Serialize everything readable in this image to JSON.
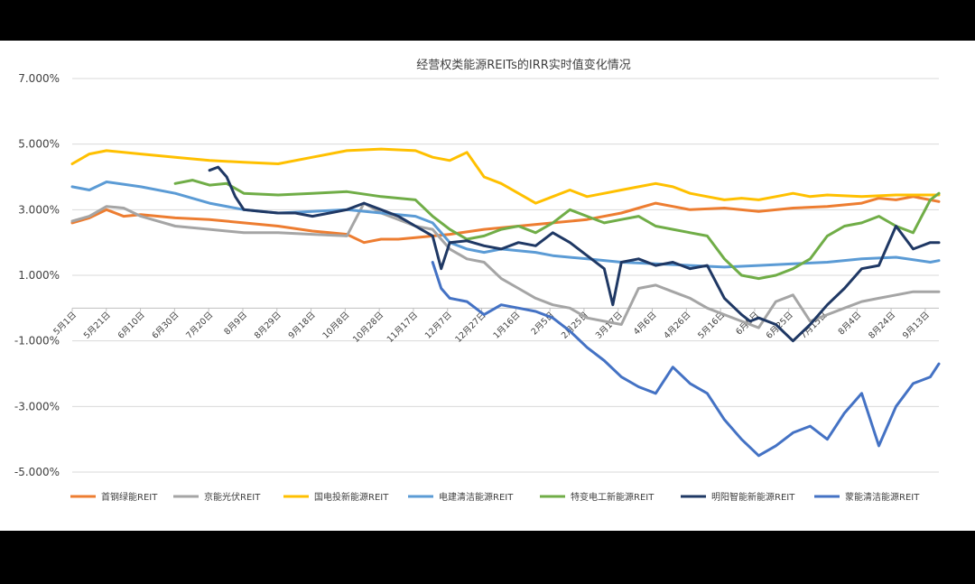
{
  "chart_data": {
    "type": "line",
    "title": "经营权类能源REITs的IRR实时值变化情况",
    "xlabel": "",
    "ylabel": "",
    "ylim": [
      -5,
      7
    ],
    "yticks": [
      -5,
      -3,
      -1,
      1,
      3,
      5,
      7
    ],
    "ytick_labels": [
      "-5.000%",
      "-3.000%",
      "-1.000%",
      "1.000%",
      "3.000%",
      "5.000%",
      "7.000%"
    ],
    "x_tick_labels": [
      "5月1日",
      "5月21日",
      "6月10日",
      "6月30日",
      "7月20日",
      "8月9日",
      "8月29日",
      "9月18日",
      "10月8日",
      "10月28日",
      "11月17日",
      "12月7日",
      "12月27日",
      "1月16日",
      "2月5日",
      "2月25日",
      "3月17日",
      "4月6日",
      "4月26日",
      "5月16日",
      "6月5日",
      "6月25日",
      "7月15日",
      "8月4日",
      "8月24日",
      "9月13日"
    ],
    "x_range": [
      0,
      505
    ],
    "grid": true,
    "legend_position": "bottom",
    "series": [
      {
        "name": "首钢绿能REIT",
        "color": "#ED7D31",
        "points": [
          [
            0,
            2.6
          ],
          [
            10,
            2.75
          ],
          [
            20,
            3.0
          ],
          [
            30,
            2.8
          ],
          [
            40,
            2.85
          ],
          [
            60,
            2.75
          ],
          [
            80,
            2.7
          ],
          [
            100,
            2.6
          ],
          [
            120,
            2.5
          ],
          [
            140,
            2.35
          ],
          [
            150,
            2.3
          ],
          [
            160,
            2.25
          ],
          [
            170,
            2.0
          ],
          [
            180,
            2.1
          ],
          [
            190,
            2.1
          ],
          [
            200,
            2.15
          ],
          [
            220,
            2.25
          ],
          [
            240,
            2.4
          ],
          [
            260,
            2.5
          ],
          [
            280,
            2.6
          ],
          [
            300,
            2.7
          ],
          [
            320,
            2.9
          ],
          [
            330,
            3.05
          ],
          [
            340,
            3.2
          ],
          [
            350,
            3.1
          ],
          [
            360,
            3.0
          ],
          [
            380,
            3.05
          ],
          [
            400,
            2.95
          ],
          [
            420,
            3.05
          ],
          [
            440,
            3.1
          ],
          [
            460,
            3.2
          ],
          [
            470,
            3.35
          ],
          [
            480,
            3.3
          ],
          [
            490,
            3.4
          ],
          [
            505,
            3.25
          ]
        ]
      },
      {
        "name": "京能光伏REIT",
        "color": "#A5A5A5",
        "points": [
          [
            0,
            2.65
          ],
          [
            10,
            2.8
          ],
          [
            20,
            3.1
          ],
          [
            30,
            3.05
          ],
          [
            40,
            2.8
          ],
          [
            60,
            2.5
          ],
          [
            80,
            2.4
          ],
          [
            100,
            2.3
          ],
          [
            120,
            2.3
          ],
          [
            140,
            2.25
          ],
          [
            160,
            2.2
          ],
          [
            170,
            3.2
          ],
          [
            180,
            2.9
          ],
          [
            190,
            2.7
          ],
          [
            200,
            2.5
          ],
          [
            210,
            2.4
          ],
          [
            220,
            1.8
          ],
          [
            230,
            1.5
          ],
          [
            240,
            1.4
          ],
          [
            250,
            0.9
          ],
          [
            260,
            0.6
          ],
          [
            270,
            0.3
          ],
          [
            280,
            0.1
          ],
          [
            290,
            0.0
          ],
          [
            300,
            -0.3
          ],
          [
            310,
            -0.4
          ],
          [
            320,
            -0.5
          ],
          [
            330,
            0.6
          ],
          [
            340,
            0.7
          ],
          [
            350,
            0.5
          ],
          [
            360,
            0.3
          ],
          [
            370,
            0.0
          ],
          [
            380,
            -0.2
          ],
          [
            390,
            -0.4
          ],
          [
            400,
            -0.6
          ],
          [
            410,
            0.2
          ],
          [
            420,
            0.4
          ],
          [
            430,
            -0.4
          ],
          [
            440,
            -0.2
          ],
          [
            450,
            0.0
          ],
          [
            460,
            0.2
          ],
          [
            470,
            0.3
          ],
          [
            480,
            0.4
          ],
          [
            490,
            0.5
          ],
          [
            505,
            0.5
          ]
        ]
      },
      {
        "name": "国电投新能源REIT",
        "color": "#FFC000",
        "points": [
          [
            0,
            4.4
          ],
          [
            10,
            4.7
          ],
          [
            20,
            4.8
          ],
          [
            40,
            4.7
          ],
          [
            60,
            4.6
          ],
          [
            80,
            4.5
          ],
          [
            100,
            4.45
          ],
          [
            120,
            4.4
          ],
          [
            140,
            4.6
          ],
          [
            160,
            4.8
          ],
          [
            180,
            4.85
          ],
          [
            200,
            4.8
          ],
          [
            210,
            4.6
          ],
          [
            220,
            4.5
          ],
          [
            230,
            4.75
          ],
          [
            240,
            4.0
          ],
          [
            250,
            3.8
          ],
          [
            260,
            3.5
          ],
          [
            270,
            3.2
          ],
          [
            280,
            3.4
          ],
          [
            290,
            3.6
          ],
          [
            300,
            3.4
          ],
          [
            310,
            3.5
          ],
          [
            320,
            3.6
          ],
          [
            330,
            3.7
          ],
          [
            340,
            3.8
          ],
          [
            350,
            3.7
          ],
          [
            360,
            3.5
          ],
          [
            370,
            3.4
          ],
          [
            380,
            3.3
          ],
          [
            390,
            3.35
          ],
          [
            400,
            3.3
          ],
          [
            410,
            3.4
          ],
          [
            420,
            3.5
          ],
          [
            430,
            3.4
          ],
          [
            440,
            3.45
          ],
          [
            460,
            3.4
          ],
          [
            480,
            3.45
          ],
          [
            505,
            3.45
          ]
        ]
      },
      {
        "name": "电建清洁能源REIT",
        "color": "#5B9BD5",
        "points": [
          [
            0,
            3.7
          ],
          [
            10,
            3.6
          ],
          [
            20,
            3.85
          ],
          [
            40,
            3.7
          ],
          [
            60,
            3.5
          ],
          [
            80,
            3.2
          ],
          [
            100,
            3.0
          ],
          [
            120,
            2.9
          ],
          [
            140,
            2.95
          ],
          [
            160,
            3.0
          ],
          [
            180,
            2.9
          ],
          [
            200,
            2.8
          ],
          [
            210,
            2.6
          ],
          [
            220,
            2.0
          ],
          [
            230,
            1.8
          ],
          [
            240,
            1.7
          ],
          [
            250,
            1.8
          ],
          [
            260,
            1.75
          ],
          [
            270,
            1.7
          ],
          [
            280,
            1.6
          ],
          [
            300,
            1.5
          ],
          [
            320,
            1.4
          ],
          [
            340,
            1.35
          ],
          [
            360,
            1.3
          ],
          [
            380,
            1.25
          ],
          [
            400,
            1.3
          ],
          [
            420,
            1.35
          ],
          [
            440,
            1.4
          ],
          [
            460,
            1.5
          ],
          [
            480,
            1.55
          ],
          [
            500,
            1.4
          ],
          [
            505,
            1.45
          ]
        ]
      },
      {
        "name": "特变电工新能源REIT",
        "color": "#70AD47",
        "points": [
          [
            60,
            3.8
          ],
          [
            70,
            3.9
          ],
          [
            80,
            3.75
          ],
          [
            90,
            3.8
          ],
          [
            100,
            3.5
          ],
          [
            120,
            3.45
          ],
          [
            140,
            3.5
          ],
          [
            160,
            3.55
          ],
          [
            180,
            3.4
          ],
          [
            200,
            3.3
          ],
          [
            210,
            2.8
          ],
          [
            220,
            2.4
          ],
          [
            230,
            2.1
          ],
          [
            240,
            2.2
          ],
          [
            250,
            2.4
          ],
          [
            260,
            2.5
          ],
          [
            270,
            2.3
          ],
          [
            280,
            2.6
          ],
          [
            290,
            3.0
          ],
          [
            300,
            2.8
          ],
          [
            310,
            2.6
          ],
          [
            320,
            2.7
          ],
          [
            330,
            2.8
          ],
          [
            340,
            2.5
          ],
          [
            350,
            2.4
          ],
          [
            360,
            2.3
          ],
          [
            370,
            2.2
          ],
          [
            380,
            1.5
          ],
          [
            390,
            1.0
          ],
          [
            400,
            0.9
          ],
          [
            410,
            1.0
          ],
          [
            420,
            1.2
          ],
          [
            430,
            1.5
          ],
          [
            440,
            2.2
          ],
          [
            450,
            2.5
          ],
          [
            460,
            2.6
          ],
          [
            470,
            2.8
          ],
          [
            480,
            2.5
          ],
          [
            490,
            2.3
          ],
          [
            500,
            3.3
          ],
          [
            505,
            3.5
          ]
        ]
      },
      {
        "name": "明阳智能新能源REIT",
        "color": "#1F3864",
        "points": [
          [
            80,
            4.2
          ],
          [
            85,
            4.3
          ],
          [
            90,
            4.0
          ],
          [
            95,
            3.4
          ],
          [
            100,
            3.0
          ],
          [
            110,
            2.95
          ],
          [
            120,
            2.9
          ],
          [
            130,
            2.9
          ],
          [
            140,
            2.8
          ],
          [
            150,
            2.9
          ],
          [
            160,
            3.0
          ],
          [
            170,
            3.2
          ],
          [
            180,
            3.0
          ],
          [
            190,
            2.8
          ],
          [
            200,
            2.5
          ],
          [
            210,
            2.2
          ],
          [
            215,
            1.2
          ],
          [
            220,
            2.0
          ],
          [
            230,
            2.05
          ],
          [
            240,
            1.9
          ],
          [
            250,
            1.8
          ],
          [
            260,
            2.0
          ],
          [
            270,
            1.9
          ],
          [
            280,
            2.3
          ],
          [
            290,
            2.0
          ],
          [
            300,
            1.6
          ],
          [
            310,
            1.2
          ],
          [
            315,
            0.1
          ],
          [
            320,
            1.4
          ],
          [
            330,
            1.5
          ],
          [
            340,
            1.3
          ],
          [
            350,
            1.4
          ],
          [
            360,
            1.2
          ],
          [
            370,
            1.3
          ],
          [
            380,
            0.3
          ],
          [
            390,
            -0.2
          ],
          [
            395,
            -0.4
          ],
          [
            400,
            -0.3
          ],
          [
            410,
            -0.5
          ],
          [
            420,
            -1.0
          ],
          [
            430,
            -0.5
          ],
          [
            440,
            0.1
          ],
          [
            450,
            0.6
          ],
          [
            460,
            1.2
          ],
          [
            470,
            1.3
          ],
          [
            480,
            2.5
          ],
          [
            490,
            1.8
          ],
          [
            500,
            2.0
          ],
          [
            505,
            2.0
          ]
        ]
      },
      {
        "name": "蒙能清洁能源REIT",
        "color": "#4472C4",
        "points": [
          [
            210,
            1.4
          ],
          [
            215,
            0.6
          ],
          [
            220,
            0.3
          ],
          [
            230,
            0.2
          ],
          [
            240,
            -0.2
          ],
          [
            250,
            0.1
          ],
          [
            260,
            0.0
          ],
          [
            270,
            -0.1
          ],
          [
            280,
            -0.3
          ],
          [
            290,
            -0.7
          ],
          [
            300,
            -1.2
          ],
          [
            310,
            -1.6
          ],
          [
            320,
            -2.1
          ],
          [
            330,
            -2.4
          ],
          [
            340,
            -2.6
          ],
          [
            350,
            -1.8
          ],
          [
            360,
            -2.3
          ],
          [
            370,
            -2.6
          ],
          [
            380,
            -3.4
          ],
          [
            390,
            -4.0
          ],
          [
            400,
            -4.5
          ],
          [
            410,
            -4.2
          ],
          [
            420,
            -3.8
          ],
          [
            430,
            -3.6
          ],
          [
            440,
            -4.0
          ],
          [
            450,
            -3.2
          ],
          [
            460,
            -2.6
          ],
          [
            470,
            -4.2
          ],
          [
            480,
            -3.0
          ],
          [
            490,
            -2.3
          ],
          [
            500,
            -2.1
          ],
          [
            505,
            -1.7
          ]
        ]
      }
    ]
  }
}
